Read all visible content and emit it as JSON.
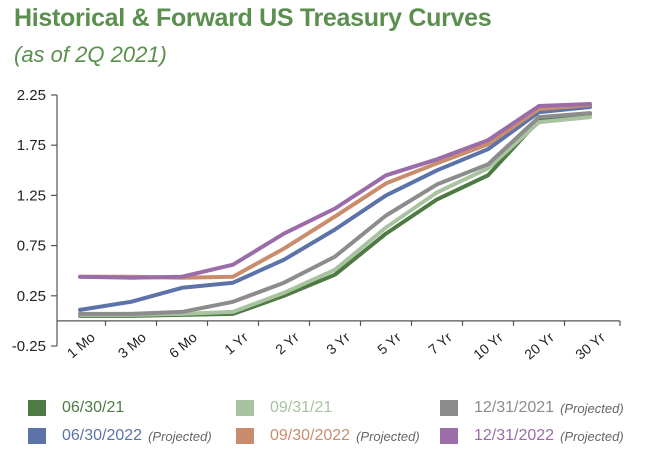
{
  "title": "Historical & Forward US Treasury Curves",
  "subtitle": "(as of 2Q 2021)",
  "chart_data": {
    "type": "line",
    "categories": [
      "1 Mo",
      "3 Mo",
      "6 Mo",
      "1 Yr",
      "2 Yr",
      "3 Yr",
      "5 Yr",
      "7 Yr",
      "10 Yr",
      "20 Yr",
      "30 Yr"
    ],
    "ylim": [
      -0.25,
      2.25
    ],
    "yticks": [
      "2.25",
      "1.75",
      "1.25",
      "0.75",
      "0.25",
      "-0.25"
    ],
    "ytick_values": [
      2.25,
      1.75,
      1.25,
      0.75,
      0.25,
      -0.25
    ],
    "grid": false,
    "legend_position": "bottom",
    "series": [
      {
        "name": "06/30/21",
        "note": "",
        "color": "#4e7a44",
        "values": [
          0.05,
          0.05,
          0.06,
          0.07,
          0.25,
          0.46,
          0.87,
          1.21,
          1.45,
          2.0,
          2.06
        ]
      },
      {
        "name": "09/31/21",
        "note": "",
        "color": "#a9c2a0",
        "values": [
          0.06,
          0.06,
          0.07,
          0.09,
          0.28,
          0.51,
          0.93,
          1.28,
          1.52,
          1.98,
          2.03
        ]
      },
      {
        "name": "12/31/2021",
        "note": "(Projected)",
        "color": "#8c8c8c",
        "values": [
          0.07,
          0.07,
          0.09,
          0.19,
          0.38,
          0.64,
          1.05,
          1.36,
          1.56,
          2.03,
          2.07
        ]
      },
      {
        "name": "06/30/2022",
        "note": "(Projected)",
        "color": "#5b73a8",
        "values": [
          0.11,
          0.19,
          0.33,
          0.38,
          0.61,
          0.91,
          1.25,
          1.5,
          1.71,
          2.08,
          2.13
        ]
      },
      {
        "name": "09/30/2022",
        "note": "(Projected)",
        "color": "#c98d6e",
        "values": [
          0.44,
          0.44,
          0.43,
          0.44,
          0.72,
          1.04,
          1.37,
          1.57,
          1.76,
          2.11,
          2.15
        ]
      },
      {
        "name": "12/31/2022",
        "note": "(Projected)",
        "color": "#9a6ca8",
        "values": [
          0.44,
          0.43,
          0.44,
          0.56,
          0.87,
          1.12,
          1.45,
          1.61,
          1.8,
          2.14,
          2.16
        ]
      }
    ]
  }
}
